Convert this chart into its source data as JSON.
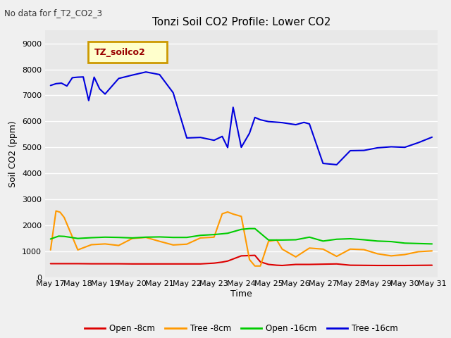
{
  "title": "Tonzi Soil CO2 Profile: Lower CO2",
  "no_data_text": "No data for f_T2_CO2_3",
  "xlabel": "Time",
  "ylabel": "Soil CO2 (ppm)",
  "ylim": [
    0,
    9500
  ],
  "yticks": [
    0,
    1000,
    2000,
    3000,
    4000,
    5000,
    6000,
    7000,
    8000,
    9000
  ],
  "x_labels": [
    "May 17",
    "May 18",
    "May 19",
    "May 20",
    "May 21",
    "May 22",
    "May 23",
    "May 24",
    "May 25",
    "May 26",
    "May 27",
    "May 28",
    "May 29",
    "May 30",
    "May 31"
  ],
  "legend_label": "TZ_soilco2",
  "fig_bg": "#f0f0f0",
  "plot_bg": "#e8e8e8",
  "grid_color": "#ffffff",
  "series": {
    "open_8cm": {
      "color": "#dd0000",
      "label": "Open -8cm",
      "x": [
        0,
        0.15,
        0.3,
        0.5,
        1,
        1.5,
        2,
        2.5,
        3,
        3.5,
        4,
        4.5,
        5,
        5.5,
        6,
        6.3,
        6.5,
        6.7,
        7,
        7.5,
        7.7,
        8,
        8.3,
        8.5,
        9,
        9.5,
        10,
        10.5,
        11,
        11.5,
        12,
        12.5,
        13,
        13.5,
        14
      ],
      "y": [
        520,
        520,
        520,
        520,
        520,
        515,
        515,
        515,
        510,
        510,
        510,
        510,
        510,
        510,
        540,
        580,
        620,
        700,
        820,
        840,
        590,
        490,
        460,
        450,
        490,
        490,
        500,
        510,
        460,
        455,
        450,
        450,
        450,
        455,
        460
      ]
    },
    "tree_8cm": {
      "color": "#ff9900",
      "label": "Tree -8cm",
      "x": [
        0,
        0.2,
        0.35,
        0.5,
        1,
        1.5,
        2,
        2.5,
        3,
        3.5,
        4,
        4.5,
        5,
        5.5,
        6,
        6.3,
        6.5,
        6.7,
        7,
        7.3,
        7.5,
        7.7,
        8,
        8.3,
        8.5,
        9,
        9.5,
        10,
        10.5,
        11,
        11.5,
        12,
        12.5,
        13,
        13.5,
        14
      ],
      "y": [
        1050,
        2550,
        2500,
        2300,
        1050,
        1250,
        1280,
        1220,
        1490,
        1530,
        1380,
        1240,
        1270,
        1510,
        1540,
        2440,
        2510,
        2430,
        2340,
        680,
        430,
        430,
        1380,
        1430,
        1080,
        780,
        1120,
        1080,
        800,
        1080,
        1060,
        900,
        820,
        870,
        980,
        1010
      ]
    },
    "open_16cm": {
      "color": "#00cc00",
      "label": "Open -16cm",
      "x": [
        0,
        0.3,
        0.5,
        1,
        1.5,
        2,
        2.5,
        3,
        3.5,
        4,
        4.5,
        5,
        5.5,
        6,
        6.5,
        7,
        7.3,
        7.5,
        8,
        8.5,
        9,
        9.5,
        10,
        10.5,
        11,
        11.5,
        12,
        12.5,
        13,
        13.5,
        14
      ],
      "y": [
        1470,
        1580,
        1570,
        1490,
        1520,
        1540,
        1530,
        1510,
        1540,
        1550,
        1530,
        1530,
        1610,
        1640,
        1690,
        1840,
        1870,
        1870,
        1430,
        1430,
        1440,
        1540,
        1390,
        1460,
        1480,
        1440,
        1390,
        1370,
        1310,
        1295,
        1280
      ]
    },
    "tree_16cm": {
      "color": "#0000dd",
      "label": "Tree -16cm",
      "x": [
        0,
        0.2,
        0.4,
        0.6,
        0.8,
        1.0,
        1.2,
        1.4,
        1.6,
        1.8,
        2.0,
        2.5,
        3.0,
        3.5,
        4.0,
        4.5,
        5.0,
        5.5,
        6.0,
        6.3,
        6.5,
        6.7,
        7.0,
        7.3,
        7.5,
        7.7,
        8.0,
        8.5,
        9.0,
        9.3,
        9.5,
        10.0,
        10.5,
        11.0,
        11.5,
        12.0,
        12.5,
        13.0,
        13.5,
        14.0
      ],
      "y": [
        7380,
        7450,
        7470,
        7360,
        7680,
        7700,
        7710,
        6800,
        7700,
        7250,
        7050,
        7650,
        7780,
        7900,
        7800,
        7100,
        5360,
        5380,
        5270,
        5420,
        4990,
        6540,
        5000,
        5540,
        6150,
        6060,
        5990,
        5950,
        5870,
        5960,
        5900,
        4380,
        4330,
        4870,
        4880,
        4980,
        5020,
        5000,
        5180,
        5390
      ]
    }
  }
}
